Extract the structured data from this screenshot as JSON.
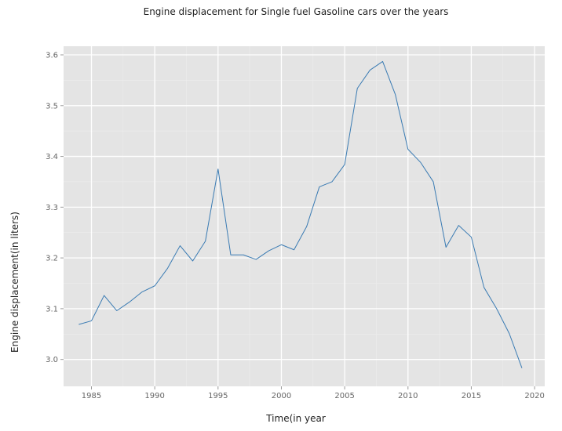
{
  "chart_data": {
    "type": "line",
    "title": "Engine displacement for Single fuel Gasoline cars over the years",
    "xlabel": "Time(in year",
    "ylabel": "Engine displacement(in liters)",
    "xlim": [
      1982.8,
      2020.8
    ],
    "ylim": [
      2.947,
      3.617
    ],
    "x_ticks": [
      1985,
      1990,
      1995,
      2000,
      2005,
      2010,
      2015,
      2020
    ],
    "y_ticks": [
      3.0,
      3.1,
      3.2,
      3.3,
      3.4,
      3.5,
      3.6
    ],
    "x_tick_labels": [
      "1985",
      "1990",
      "1995",
      "2000",
      "2005",
      "2010",
      "2015",
      "2020"
    ],
    "y_tick_labels": [
      "3.0",
      "3.1",
      "3.2",
      "3.3",
      "3.4",
      "3.5",
      "3.6"
    ],
    "grid": true,
    "series": [
      {
        "color": "#3a7bb3",
        "x": [
          1984,
          1985,
          1986,
          1987,
          1988,
          1989,
          1990,
          1991,
          1992,
          1993,
          1994,
          1995,
          1996,
          1997,
          1998,
          1999,
          2000,
          2001,
          2002,
          2003,
          2004,
          2005,
          2006,
          2007,
          2008,
          2009,
          2010,
          2011,
          2012,
          2013,
          2014,
          2015,
          2016,
          2017,
          2018,
          2019
        ],
        "values": [
          3.069,
          3.076,
          3.126,
          3.096,
          3.113,
          3.133,
          3.145,
          3.179,
          3.224,
          3.194,
          3.233,
          3.375,
          3.206,
          3.206,
          3.197,
          3.214,
          3.226,
          3.216,
          3.262,
          3.34,
          3.35,
          3.384,
          3.534,
          3.57,
          3.587,
          3.522,
          3.414,
          3.388,
          3.35,
          3.221,
          3.264,
          3.241,
          3.142,
          3.1,
          3.051,
          2.983
        ]
      }
    ]
  }
}
